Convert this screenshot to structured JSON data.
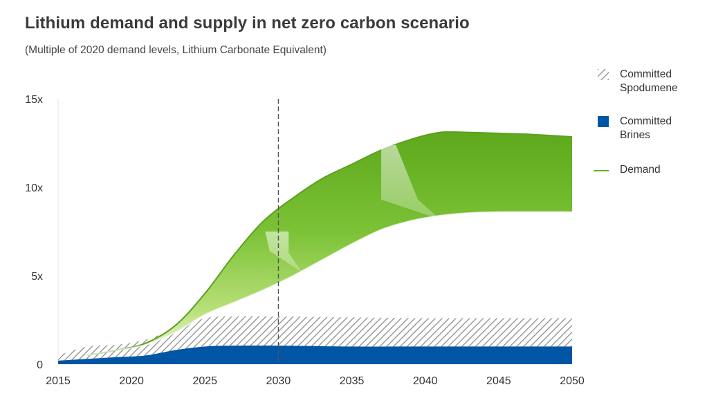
{
  "header": {
    "title": "Lithium demand and supply in net zero carbon scenario",
    "subtitle": "(Multiple of 2020 demand levels, Lithium Carbonate Equivalent)"
  },
  "legend": {
    "items": [
      {
        "label": "Committed Spodumene",
        "swatch": "hatch",
        "color": "#8c8c8c"
      },
      {
        "label": "Committed Brines",
        "swatch": "solid",
        "color": "#0055a5"
      },
      {
        "label": "Demand",
        "swatch": "line",
        "color": "#6aae2a"
      }
    ]
  },
  "chart_data": {
    "type": "area",
    "x_tick_labels": [
      "2015",
      "2020",
      "2025",
      "2030",
      "2035",
      "2040",
      "2045",
      "2050"
    ],
    "y_tick_labels": [
      "0",
      "5x",
      "10x",
      "15x"
    ],
    "ylim": [
      0,
      15
    ],
    "xlim": [
      2015,
      2050
    ],
    "reference_line_x": 2030,
    "colors": {
      "brines": "#0055a5",
      "spodumene_hatch": "#8c8c8c",
      "demand": "#6aae2a",
      "demand_light": "#d8f0b0"
    },
    "series": [
      {
        "name": "Committed Brines",
        "x": [
          2015,
          2017,
          2019,
          2021,
          2023,
          2025,
          2027,
          2030,
          2035,
          2040,
          2045,
          2050
        ],
        "values": [
          0.2,
          0.3,
          0.4,
          0.5,
          0.8,
          1.0,
          1.05,
          1.05,
          1.0,
          1.0,
          1.0,
          1.0
        ]
      },
      {
        "name": "Committed Spodumene",
        "x": [
          2015,
          2017,
          2019,
          2021,
          2023,
          2025,
          2027,
          2030,
          2035,
          2040,
          2045,
          2050
        ],
        "values": [
          0.5,
          1.0,
          1.1,
          1.4,
          2.0,
          2.6,
          2.7,
          2.7,
          2.65,
          2.6,
          2.6,
          2.6
        ]
      },
      {
        "name": "Demand",
        "x": [
          2017,
          2019,
          2021,
          2023,
          2025,
          2027,
          2029,
          2031,
          2033,
          2035,
          2037,
          2039,
          2041,
          2043,
          2045,
          2047,
          2050
        ],
        "upper": [
          0.5,
          0.8,
          1.2,
          2.2,
          4.0,
          6.2,
          8.1,
          9.4,
          10.5,
          11.3,
          12.1,
          12.7,
          13.1,
          13.1,
          13.05,
          13.0,
          12.85
        ],
        "lower": [
          0.5,
          0.8,
          1.1,
          1.8,
          2.8,
          3.5,
          4.2,
          5.0,
          5.9,
          6.8,
          7.6,
          8.1,
          8.4,
          8.55,
          8.6,
          8.6,
          8.6
        ]
      }
    ]
  }
}
